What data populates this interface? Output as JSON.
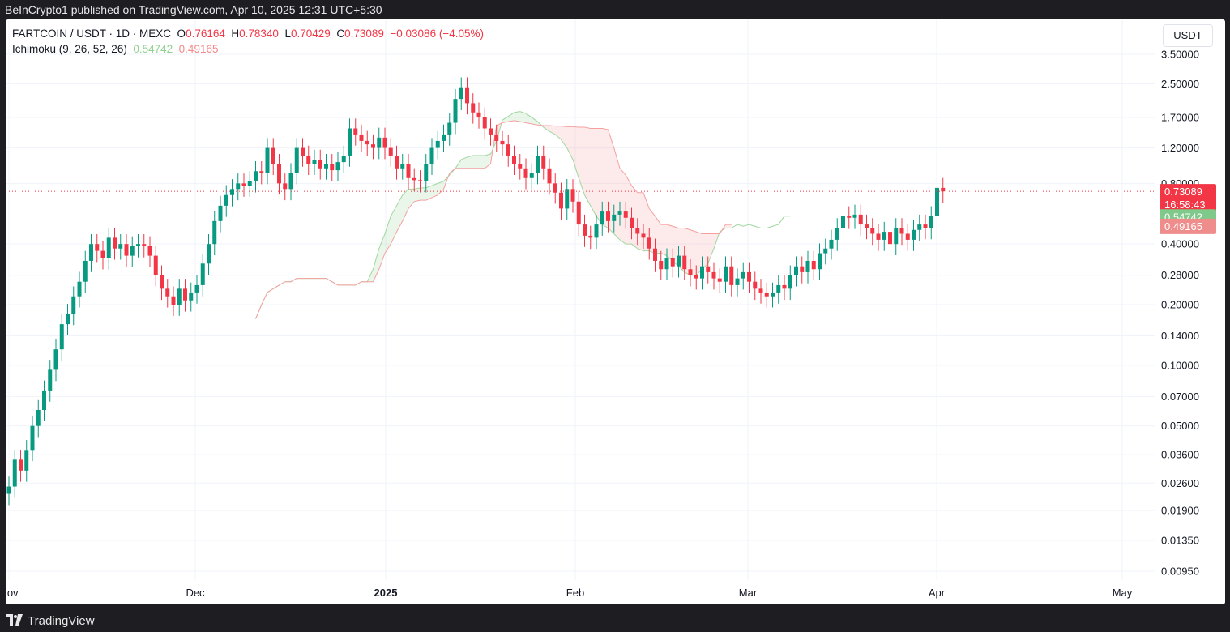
{
  "header": {
    "published": "BeInCrypto1 published on TradingView.com, Apr 10, 2025 12:31 UTC+5:30"
  },
  "legend": {
    "symbol": "FARTCOIN / USDT · 1D · MEXC",
    "o_label": "O",
    "o_value": "0.76164",
    "h_label": "H",
    "h_value": "0.78340",
    "l_label": "L",
    "l_value": "0.70429",
    "c_label": "C",
    "c_value": "0.73089",
    "change": "−0.03086 (−4.05%)",
    "indicator": "Ichimoku (9, 26, 52, 26)",
    "span_a_value": "0.54742",
    "span_b_value": "0.49165"
  },
  "unit": "USDT",
  "footer": {
    "brand": "TradingView"
  },
  "colors": {
    "up": "#089981",
    "down": "#f23645",
    "cloud_bull": "#9fd79f",
    "cloud_bear": "#f5a0a0"
  },
  "chart_data": {
    "type": "candlestick",
    "title": "FARTCOIN / USDT · 1D · MEXC",
    "y_scale": "log",
    "y_ticks": [
      "3.50000",
      "2.50000",
      "1.70000",
      "1.20000",
      "0.80000",
      "0.40000",
      "0.28000",
      "0.20000",
      "0.14000",
      "0.10000",
      "0.07000",
      "0.05000",
      "0.03600",
      "0.02600",
      "0.01900",
      "0.01350",
      "0.00950"
    ],
    "x_ticks": [
      "Nov",
      "Dec",
      "2025",
      "Feb",
      "Mar",
      "Apr",
      "May"
    ],
    "last_price": {
      "value": "0.73089",
      "countdown": "16:58:43"
    },
    "span_a_label": "0.54742",
    "span_b_label": "0.49165",
    "candles_close": [
      0.025,
      0.034,
      0.03,
      0.038,
      0.05,
      0.06,
      0.075,
      0.095,
      0.12,
      0.16,
      0.18,
      0.22,
      0.26,
      0.33,
      0.4,
      0.37,
      0.34,
      0.43,
      0.38,
      0.4,
      0.35,
      0.39,
      0.4,
      0.39,
      0.35,
      0.28,
      0.24,
      0.22,
      0.2,
      0.24,
      0.21,
      0.23,
      0.25,
      0.32,
      0.4,
      0.52,
      0.62,
      0.7,
      0.75,
      0.8,
      0.78,
      0.82,
      0.92,
      0.9,
      1.2,
      1.0,
      0.8,
      0.75,
      0.9,
      1.2,
      1.1,
      1.0,
      1.05,
      0.95,
      1.0,
      0.93,
      1.02,
      1.1,
      1.5,
      1.4,
      1.3,
      1.25,
      1.2,
      1.35,
      1.2,
      1.1,
      0.95,
      1.0,
      0.85,
      0.83,
      0.82,
      1.0,
      1.2,
      1.3,
      1.4,
      1.6,
      2.1,
      2.4,
      2.0,
      1.8,
      1.7,
      1.5,
      1.4,
      1.3,
      1.25,
      1.1,
      1.0,
      0.95,
      0.85,
      0.9,
      1.1,
      0.95,
      0.8,
      0.72,
      0.6,
      0.75,
      0.65,
      0.5,
      0.44,
      0.43,
      0.5,
      0.58,
      0.52,
      0.56,
      0.58,
      0.54,
      0.48,
      0.45,
      0.43,
      0.38,
      0.33,
      0.3,
      0.34,
      0.31,
      0.35,
      0.3,
      0.28,
      0.27,
      0.31,
      0.29,
      0.27,
      0.26,
      0.31,
      0.25,
      0.27,
      0.29,
      0.26,
      0.24,
      0.23,
      0.22,
      0.23,
      0.25,
      0.24,
      0.28,
      0.31,
      0.29,
      0.33,
      0.3,
      0.36,
      0.38,
      0.42,
      0.48,
      0.55,
      0.54,
      0.56,
      0.5,
      0.48,
      0.45,
      0.42,
      0.46,
      0.4,
      0.48,
      0.45,
      0.42,
      0.47,
      0.5,
      0.48,
      0.55,
      0.76,
      0.73
    ],
    "span_a": [
      0.17,
      0.2,
      0.23,
      0.24,
      0.25,
      0.26,
      0.26,
      0.27,
      0.27,
      0.27,
      0.27,
      0.27,
      0.27,
      0.26,
      0.25,
      0.25,
      0.25,
      0.25,
      0.26,
      0.26,
      0.3,
      0.38,
      0.45,
      0.55,
      0.62,
      0.7,
      0.75,
      0.75,
      0.76,
      0.76,
      0.78,
      0.8,
      0.82,
      0.88,
      0.95,
      1.05,
      1.08,
      1.1,
      1.1,
      1.1,
      1.12,
      1.3,
      1.65,
      1.72,
      1.8,
      1.82,
      1.78,
      1.7,
      1.62,
      1.52,
      1.45,
      1.4,
      1.32,
      1.2,
      1.05,
      0.85,
      0.7,
      0.62,
      0.55,
      0.5,
      0.48,
      0.45,
      0.42,
      0.4,
      0.4,
      0.38,
      0.37,
      0.37,
      0.36,
      0.36,
      0.35,
      0.33,
      0.31,
      0.29,
      0.28,
      0.28,
      0.3,
      0.32,
      0.38,
      0.46,
      0.48,
      0.48,
      0.5,
      0.49,
      0.5,
      0.49,
      0.48,
      0.48,
      0.49,
      0.5,
      0.55,
      0.55
    ],
    "span_b": [
      0.17,
      0.2,
      0.23,
      0.24,
      0.25,
      0.26,
      0.26,
      0.27,
      0.27,
      0.27,
      0.27,
      0.27,
      0.27,
      0.26,
      0.25,
      0.25,
      0.25,
      0.25,
      0.26,
      0.26,
      0.26,
      0.3,
      0.36,
      0.4,
      0.46,
      0.52,
      0.6,
      0.65,
      0.66,
      0.66,
      0.68,
      0.7,
      0.75,
      0.9,
      0.95,
      0.95,
      0.95,
      0.95,
      0.95,
      0.95,
      1.0,
      1.55,
      1.6,
      1.62,
      1.64,
      1.62,
      1.6,
      1.58,
      1.56,
      1.55,
      1.55,
      1.54,
      1.54,
      1.53,
      1.53,
      1.52,
      1.52,
      1.5,
      1.5,
      1.5,
      1.48,
      1.2,
      0.95,
      0.88,
      0.78,
      0.72,
      0.72,
      0.6,
      0.55,
      0.5,
      0.5,
      0.49,
      0.48,
      0.48,
      0.47,
      0.46,
      0.45,
      0.45,
      0.45,
      0.45,
      0.5,
      0.5
    ]
  }
}
